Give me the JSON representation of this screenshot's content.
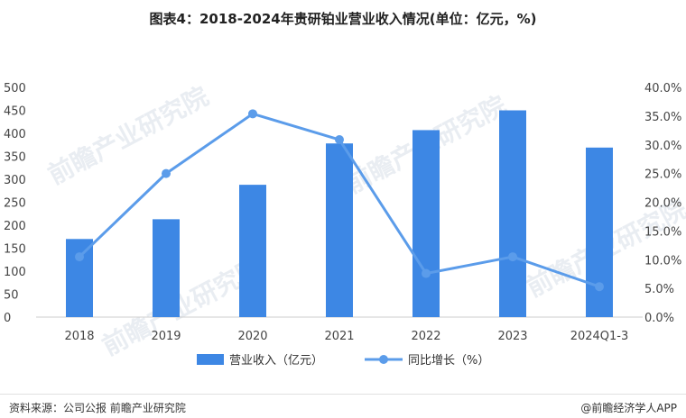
{
  "chart_data": {
    "type": "bar",
    "title": "图表4：2018-2024年贵研铂业营业收入情况(单位：亿元，%)",
    "categories": [
      "2018",
      "2019",
      "2020",
      "2021",
      "2022",
      "2023",
      "2024Q1-3"
    ],
    "series": [
      {
        "name": "营业收入（亿元）",
        "type": "bar",
        "axis": "left",
        "color": "#3d87e4",
        "values": [
          170,
          213,
          288,
          378,
          407,
          450,
          369
        ]
      },
      {
        "name": "同比增长（%）",
        "type": "line",
        "axis": "right",
        "color": "#5b9cea",
        "values": [
          10.5,
          25.0,
          35.4,
          30.9,
          7.6,
          10.5,
          5.3
        ]
      }
    ],
    "y_left": {
      "min": 0,
      "max": 500,
      "step": 50,
      "ticks": [
        "0",
        "50",
        "100",
        "150",
        "200",
        "250",
        "300",
        "350",
        "400",
        "450",
        "500"
      ]
    },
    "y_right": {
      "min": 0,
      "max": 40,
      "step": 5,
      "ticks": [
        "0.0%",
        "5.0%",
        "10.0%",
        "15.0%",
        "20.0%",
        "25.0%",
        "30.0%",
        "35.0%",
        "40.0%"
      ]
    },
    "grid": false,
    "legend_position": "bottom"
  },
  "source_text": "资料来源：公司公报 前瞻产业研究院",
  "copyright_text": "@前瞻经济学人APP",
  "watermark_text": "前瞻产业研究院"
}
